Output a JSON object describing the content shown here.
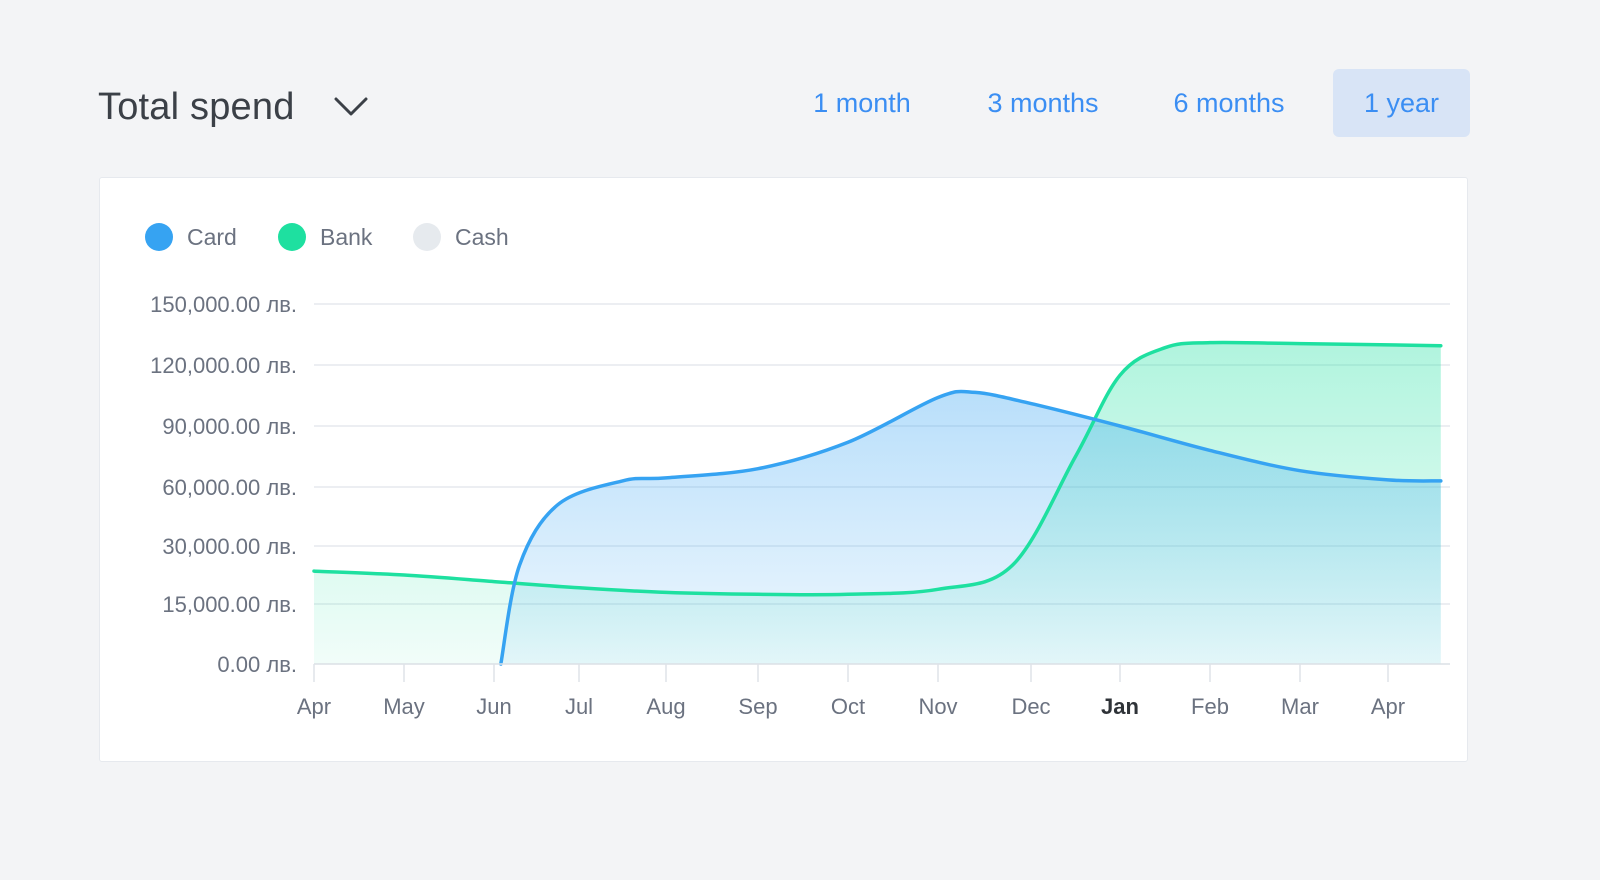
{
  "header": {
    "title": "Total spend",
    "dropdown_icon": "chevron-down-icon"
  },
  "range_tabs": [
    {
      "label": "1 month",
      "active": false
    },
    {
      "label": "3 months",
      "active": false
    },
    {
      "label": "6 months",
      "active": false
    },
    {
      "label": "1 year",
      "active": true
    }
  ],
  "colors": {
    "card": "#36a3f2",
    "bank": "#1ee0a0",
    "cash": "#e6eaee",
    "tab_text": "#3b8ef3",
    "tab_active_bg": "#d8e4f6"
  },
  "chart_data": {
    "type": "area",
    "title": "Total spend",
    "legend": [
      {
        "name": "Card",
        "color": "#36a3f2"
      },
      {
        "name": "Bank",
        "color": "#1ee0a0"
      },
      {
        "name": "Cash",
        "color": "#e6eaee"
      }
    ],
    "y_ticks": [
      {
        "value": 0,
        "label": "0.00 лв."
      },
      {
        "value": 15000,
        "label": "15,000.00 лв."
      },
      {
        "value": 30000,
        "label": "30,000.00 лв."
      },
      {
        "value": 60000,
        "label": "60,000.00 лв."
      },
      {
        "value": 90000,
        "label": "90,000.00 лв."
      },
      {
        "value": 120000,
        "label": "120,000.00 лв."
      },
      {
        "value": 150000,
        "label": "150,000.00 лв."
      }
    ],
    "x_ticks": [
      "Apr",
      "May",
      "Jun",
      "Jul",
      "Aug",
      "Sep",
      "Oct",
      "Nov",
      "Dec",
      "Jan",
      "Feb",
      "Mar",
      "Apr"
    ],
    "x_ticks_bold": [
      "Jan"
    ],
    "x_range": [
      0,
      12.6
    ],
    "series": [
      {
        "name": "Card",
        "points": [
          [
            2.08,
            0
          ],
          [
            2.3,
            25000
          ],
          [
            2.75,
            51000
          ],
          [
            3.5,
            63000
          ],
          [
            4.0,
            64500
          ],
          [
            5.0,
            69000
          ],
          [
            6.0,
            82000
          ],
          [
            7.0,
            104000
          ],
          [
            7.4,
            106500
          ],
          [
            8.0,
            101000
          ],
          [
            9.0,
            90000
          ],
          [
            10.0,
            78000
          ],
          [
            11.0,
            68000
          ],
          [
            12.0,
            63500
          ],
          [
            12.6,
            63000
          ]
        ]
      },
      {
        "name": "Bank",
        "points": [
          [
            0,
            23500
          ],
          [
            1.0,
            22500
          ],
          [
            2.0,
            20800
          ],
          [
            3.0,
            19200
          ],
          [
            4.0,
            18000
          ],
          [
            5.0,
            17500
          ],
          [
            6.0,
            17500
          ],
          [
            7.0,
            18800
          ],
          [
            7.8,
            25000
          ],
          [
            8.5,
            75000
          ],
          [
            9.0,
            115000
          ],
          [
            9.5,
            128500
          ],
          [
            10.0,
            131000
          ],
          [
            11.0,
            130500
          ],
          [
            12.6,
            129500
          ]
        ]
      }
    ]
  }
}
